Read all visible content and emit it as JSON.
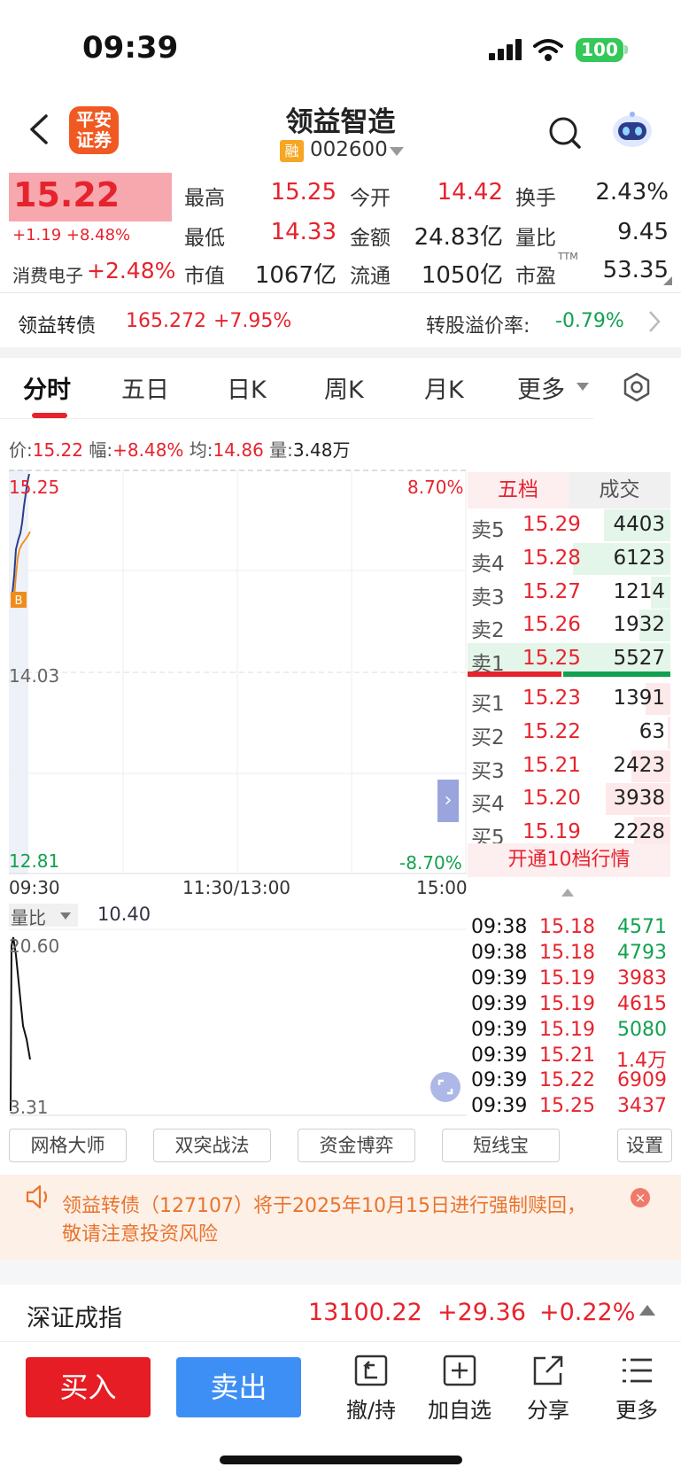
{
  "status_bar": {
    "time": "09:39",
    "battery": "100"
  },
  "header": {
    "broker_logo_line1": "平安",
    "broker_logo_line2": "证券",
    "stock_name": "领益智造",
    "margin_badge": "融",
    "stock_code": "002600"
  },
  "quote": {
    "last_price": "15.22",
    "change_line": "+1.19 +8.48%",
    "sector_name": "消费电子",
    "sector_change": "+2.48%",
    "fields": [
      {
        "label": "最高",
        "value": "15.25",
        "color": "red"
      },
      {
        "label": "今开",
        "value": "14.42",
        "color": "red"
      },
      {
        "label": "换手",
        "value": "2.43%",
        "color": "dark"
      },
      {
        "label": "最低",
        "value": "14.33",
        "color": "red"
      },
      {
        "label": "金额",
        "value": "24.83亿",
        "color": "dark"
      },
      {
        "label": "量比",
        "value": "9.45",
        "color": "dark"
      },
      {
        "label": "市值",
        "value": "1067亿",
        "color": "dark"
      },
      {
        "label": "流通",
        "value": "1050亿",
        "color": "dark"
      },
      {
        "label": "市盈",
        "value": "53.35",
        "color": "dark"
      }
    ],
    "ttm": "TTM"
  },
  "bond": {
    "name": "领益转债",
    "price": "165.272",
    "pct": "+7.95%",
    "premium_label": "转股溢价率:",
    "premium_value": "-0.79%"
  },
  "tabs": [
    "分时",
    "五日",
    "日K",
    "周K",
    "月K",
    "更多"
  ],
  "summary": {
    "price_label": "价:",
    "price": "15.22",
    "amp_label": "幅:",
    "amp": "+8.48%",
    "avg_label": "均:",
    "avg": "14.86",
    "vol_label": "量:",
    "vol": "3.48万"
  },
  "chart": {
    "y_top": "15.25",
    "y_mid": "14.03",
    "y_bottom": "12.81",
    "pct_top": "8.70%",
    "pct_bottom": "-8.70%",
    "time_start": "09:30",
    "time_mid": "11:30/13:00",
    "time_end": "15:00",
    "marker": "B",
    "ratio_label": "量比",
    "ratio_value": "10.40",
    "ratio_top": "20.60",
    "ratio_bottom": "3.31",
    "accent_red": "#e6232d",
    "accent_green": "#12a150"
  },
  "order_book": {
    "tab_levels": "五档",
    "tab_trades": "成交",
    "asks": [
      {
        "label": "卖5",
        "price": "15.29",
        "volume": "4403",
        "depth": 0.68
      },
      {
        "label": "卖4",
        "price": "15.28",
        "volume": "6123",
        "depth": 1.0
      },
      {
        "label": "卖3",
        "price": "15.27",
        "volume": "1214",
        "depth": 0.2
      },
      {
        "label": "卖2",
        "price": "15.26",
        "volume": "1932",
        "depth": 0.32
      },
      {
        "label": "卖1",
        "price": "15.25",
        "volume": "5527",
        "depth": 0.9
      }
    ],
    "bids": [
      {
        "label": "买1",
        "price": "15.23",
        "volume": "1391",
        "depth": 0.25
      },
      {
        "label": "买2",
        "price": "15.22",
        "volume": "63",
        "depth": 0.03
      },
      {
        "label": "买3",
        "price": "15.21",
        "volume": "2423",
        "depth": 0.4
      },
      {
        "label": "买4",
        "price": "15.20",
        "volume": "3938",
        "depth": 0.66
      },
      {
        "label": "买5",
        "price": "15.19",
        "volume": "2228",
        "depth": 0.37
      }
    ],
    "open_level10": "开通10档行情"
  },
  "ticks": [
    {
      "time": "09:38",
      "price": "15.18",
      "volume": "4571",
      "side": "sell"
    },
    {
      "time": "09:38",
      "price": "15.18",
      "volume": "4793",
      "side": "sell"
    },
    {
      "time": "09:39",
      "price": "15.19",
      "volume": "3983",
      "side": "buy"
    },
    {
      "time": "09:39",
      "price": "15.19",
      "volume": "4615",
      "side": "buy"
    },
    {
      "time": "09:39",
      "price": "15.19",
      "volume": "5080",
      "side": "sell"
    },
    {
      "time": "09:39",
      "price": "15.21",
      "volume": "1.4万",
      "side": "buy"
    },
    {
      "time": "09:39",
      "price": "15.22",
      "volume": "6909",
      "side": "buy"
    },
    {
      "time": "09:39",
      "price": "15.25",
      "volume": "3437",
      "side": "buy"
    }
  ],
  "tools": [
    "网格大师",
    "双突战法",
    "资金博弈",
    "短线宝",
    "设置"
  ],
  "notice": {
    "text": "领益转债（127107）将于2025年10月15日进行强制赎回，敬请注意投资风险",
    "close": "×"
  },
  "index": {
    "name": "深证成指",
    "value": "13100.22",
    "change": "+29.36",
    "pct": "+0.22%"
  },
  "bottom_bar": {
    "buy": "买入",
    "sell": "卖出",
    "cancel_hold": "撤/持",
    "add_watch": "加自选",
    "share": "分享",
    "more": "更多"
  }
}
